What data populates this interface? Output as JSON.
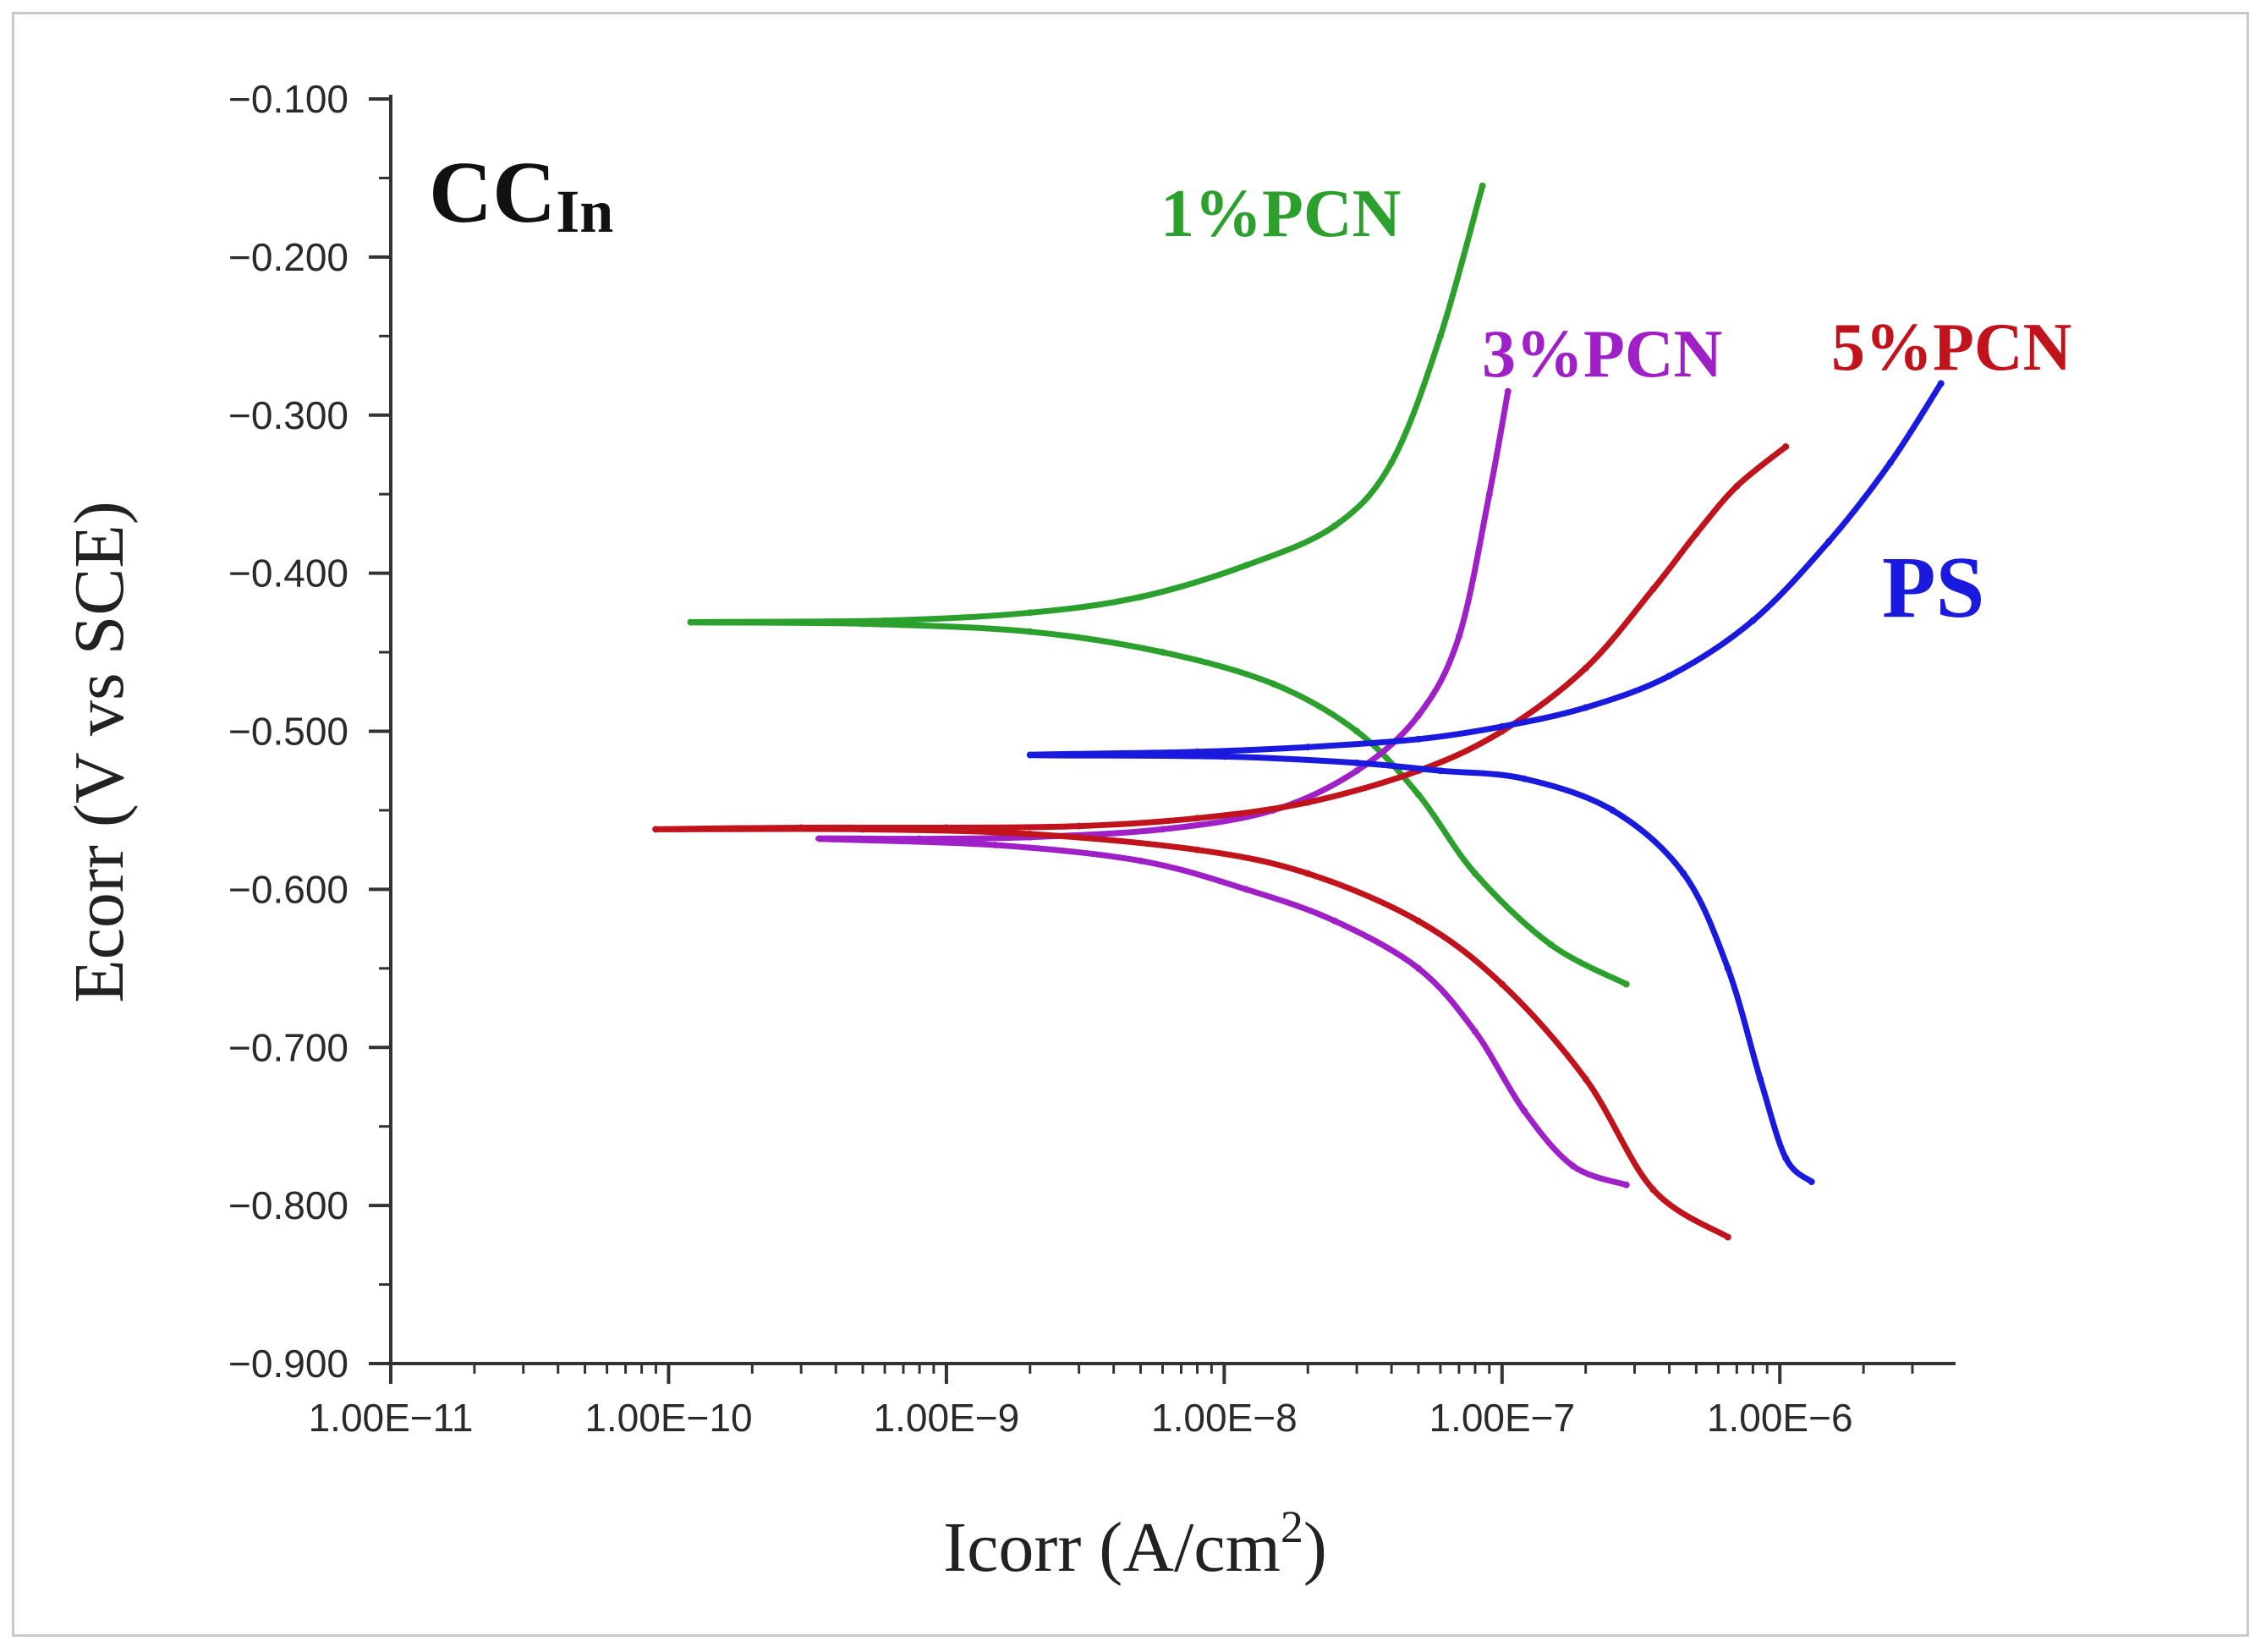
{
  "chart_data": {
    "type": "line",
    "title": "CC",
    "title_subscript": "In",
    "xlabel": "Icorr (A/cm",
    "xlabel_superscript": "2",
    "xlabel_suffix": ")",
    "ylabel": "Ecorr (V vs SCE)",
    "x_scale": "log",
    "xlim": [
      1e-11,
      4e-06
    ],
    "ylim": [
      -0.9,
      -0.1
    ],
    "x_ticks": [
      1e-11,
      1e-10,
      1e-09,
      1e-08,
      1e-07,
      1e-06
    ],
    "x_tick_labels": [
      "1.00E−11",
      "1.00E−10",
      "1.00E−9",
      "1.00E−8",
      "1.00E−7",
      "1.00E−6"
    ],
    "y_ticks": [
      -0.1,
      -0.2,
      -0.3,
      -0.4,
      -0.5,
      -0.6,
      -0.7,
      -0.8,
      -0.9
    ],
    "y_tick_labels": [
      "−0.100",
      "−0.200",
      "−0.300",
      "−0.400",
      "−0.500",
      "−0.600",
      "−0.700",
      "−0.800",
      "−0.900"
    ],
    "grid": false,
    "series": [
      {
        "name": "1%PCN",
        "color": "#2ca02c",
        "x": [
          8.5e-08,
          6e-08,
          4e-08,
          2.5e-08,
          1.2e-08,
          5e-09,
          2e-09,
          6e-10,
          1.2e-10,
          5e-10,
          2e-09,
          6e-09,
          1.5e-08,
          3e-08,
          5e-08,
          8e-08,
          1.5e-07,
          2.8e-07
        ],
        "y": [
          -0.155,
          -0.25,
          -0.33,
          -0.37,
          -0.395,
          -0.415,
          -0.425,
          -0.43,
          -0.431,
          -0.432,
          -0.437,
          -0.45,
          -0.47,
          -0.5,
          -0.54,
          -0.59,
          -0.635,
          -0.66
        ]
      },
      {
        "name": "3%PCN",
        "color": "#a020c8",
        "x": [
          1.05e-07,
          9e-08,
          7e-08,
          5e-08,
          3e-08,
          1.5e-08,
          6e-09,
          2e-09,
          8e-10,
          3.5e-10,
          1.5e-09,
          5e-09,
          1.2e-08,
          2.5e-08,
          5e-08,
          8e-08,
          1.2e-07,
          1.8e-07,
          2.8e-07
        ],
        "y": [
          -0.285,
          -0.35,
          -0.44,
          -0.49,
          -0.525,
          -0.55,
          -0.562,
          -0.567,
          -0.568,
          -0.568,
          -0.572,
          -0.582,
          -0.6,
          -0.62,
          -0.65,
          -0.69,
          -0.74,
          -0.775,
          -0.787
        ]
      },
      {
        "name": "5%PCN",
        "color": "#c0131c",
        "x": [
          1.05e-06,
          7e-07,
          5e-07,
          3.5e-07,
          2e-07,
          1e-07,
          5e-08,
          2e-08,
          8e-09,
          3e-09,
          1e-09,
          3e-10,
          9e-11,
          5e-10,
          2e-09,
          8e-09,
          2e-08,
          5e-08,
          1e-07,
          2e-07,
          3.5e-07,
          6.5e-07
        ],
        "y": [
          -0.32,
          -0.345,
          -0.375,
          -0.41,
          -0.46,
          -0.5,
          -0.525,
          -0.545,
          -0.555,
          -0.56,
          -0.561,
          -0.561,
          -0.562,
          -0.562,
          -0.565,
          -0.575,
          -0.59,
          -0.62,
          -0.66,
          -0.72,
          -0.79,
          -0.82
        ]
      },
      {
        "name": "PS",
        "color": "#1a1adf",
        "x": [
          3.8e-06,
          2.5e-06,
          1.5e-06,
          8e-07,
          4e-07,
          2e-07,
          1e-07,
          5e-08,
          2e-08,
          8e-09,
          2e-09,
          1e-08,
          3e-08,
          6e-08,
          1.2e-07,
          2.5e-07,
          4.5e-07,
          6.5e-07,
          8.5e-07,
          1.05e-06,
          1.3e-06
        ],
        "y": [
          -0.28,
          -0.33,
          -0.38,
          -0.43,
          -0.465,
          -0.485,
          -0.497,
          -0.505,
          -0.51,
          -0.513,
          -0.515,
          -0.516,
          -0.52,
          -0.525,
          -0.53,
          -0.55,
          -0.59,
          -0.65,
          -0.72,
          -0.77,
          -0.785
        ]
      }
    ]
  }
}
